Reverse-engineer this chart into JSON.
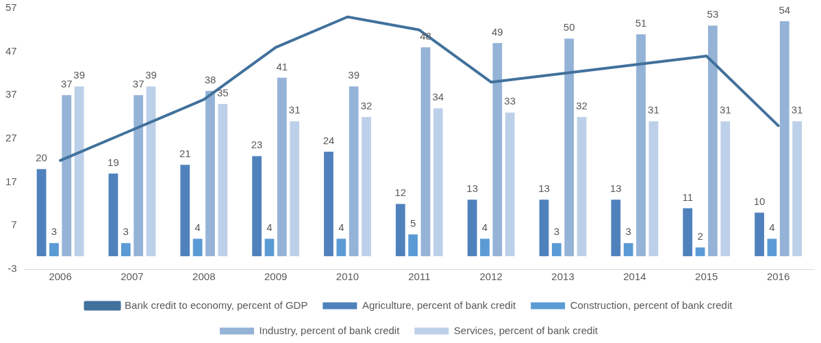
{
  "chart_data": {
    "type": "bar",
    "categories": [
      "2006",
      "2007",
      "2008",
      "2009",
      "2010",
      "2011",
      "2012",
      "2013",
      "2014",
      "2015",
      "2016"
    ],
    "series": [
      {
        "name": "Agriculture, percent of bank credit",
        "color": "#4f81bd",
        "values": [
          20,
          19,
          21,
          23,
          24,
          12,
          13,
          13,
          13,
          11,
          10
        ]
      },
      {
        "name": "Construction, percent of bank credit",
        "color": "#5b9bd5",
        "values": [
          3,
          3,
          4,
          4,
          4,
          5,
          4,
          3,
          3,
          2,
          4
        ]
      },
      {
        "name": "Industry, percent of bank credit",
        "color": "#95b3d7",
        "values": [
          37,
          37,
          38,
          41,
          39,
          48,
          49,
          50,
          51,
          53,
          54
        ]
      },
      {
        "name": "Services, percent of bank credit",
        "color": "#bdd0e9",
        "values": [
          39,
          39,
          35,
          31,
          32,
          34,
          33,
          32,
          31,
          31,
          31
        ]
      },
      {
        "name": "Bank credit to economy, percent of GDP",
        "color": "#41719c",
        "type": "line",
        "data_labels": false,
        "values": [
          22,
          29,
          36,
          48,
          55,
          52,
          40,
          42,
          44,
          46,
          30
        ]
      }
    ],
    "ylim": [
      -3,
      57
    ],
    "yticks": [
      -3,
      7,
      17,
      27,
      37,
      47,
      57
    ],
    "grid": false,
    "legend": "bottom",
    "data_labels": true,
    "marker": "none"
  }
}
